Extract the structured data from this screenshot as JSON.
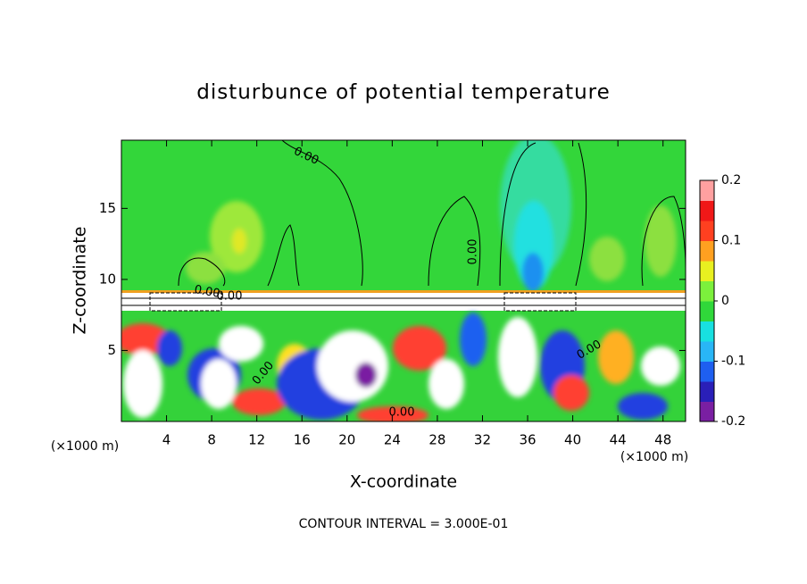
{
  "chart_data": {
    "type": "contour",
    "title": "disturbunce of potential temperature",
    "x_label": "X-coordinate",
    "y_label": "Z-coordinate",
    "x_unit_labels": [
      "(×1000 m)",
      "(×1000 m)"
    ],
    "footnote": "CONTOUR INTERVAL = 3.000E-01",
    "xlim": [
      0,
      50
    ],
    "xticks": [
      4,
      8,
      12,
      16,
      20,
      24,
      28,
      32,
      36,
      40,
      44,
      48
    ],
    "ylim": [
      0,
      19.8
    ],
    "yticks": [
      5,
      10,
      15
    ],
    "colorbar": {
      "lim": [
        -0.2,
        0.2
      ],
      "ticks": [
        -0.2,
        -0.1,
        0,
        0.1,
        0.2
      ],
      "colors": [
        "#7a1fa2",
        "#2a1fb8",
        "#1e5ff0",
        "#29b6f6",
        "#18e0e0",
        "#30d83a",
        "#7cf03c",
        "#e8f020",
        "#ffa020",
        "#ff4020",
        "#f01818",
        "#ffa0a0"
      ]
    },
    "contour_labels": [
      "0.00",
      "0.00",
      "0.00",
      "0.00",
      "0.00",
      "0.00",
      "0.00"
    ]
  }
}
